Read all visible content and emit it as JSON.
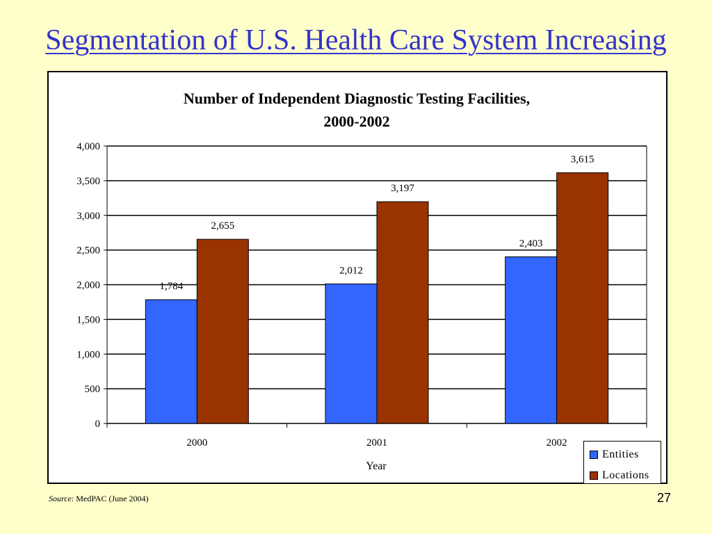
{
  "slide": {
    "title": "Segmentation of U.S. Health Care System Increasing",
    "source_label": "Source",
    "source_text": ": MedPAC (June 2004)",
    "page_number": "27"
  },
  "colors": {
    "background": "#ffffcc",
    "title": "#3333cc",
    "entities": "#3366ff",
    "locations": "#993300"
  },
  "chart_data": {
    "type": "bar",
    "title_line1": "Number of Independent Diagnostic Testing Facilities,",
    "title_line2": "2000-2002",
    "categories": [
      "2000",
      "2001",
      "2002"
    ],
    "series": [
      {
        "name": "Entities",
        "values": [
          1784,
          2012,
          2403
        ],
        "labels": [
          "1,784",
          "2,012",
          "2,403"
        ]
      },
      {
        "name": "Locations",
        "values": [
          2655,
          3197,
          3615
        ],
        "labels": [
          "2,655",
          "3,197",
          "3,615"
        ]
      }
    ],
    "xlabel": "Year",
    "ylabel": "",
    "ylim": [
      0,
      4000
    ],
    "yticks": [
      0,
      500,
      1000,
      1500,
      2000,
      2500,
      3000,
      3500,
      4000
    ],
    "ytick_labels": [
      "0",
      "500",
      "1,000",
      "1,500",
      "2,000",
      "2,500",
      "3,000",
      "3,500",
      "4,000"
    ],
    "grid": true,
    "legend_position": "bottom-right"
  }
}
